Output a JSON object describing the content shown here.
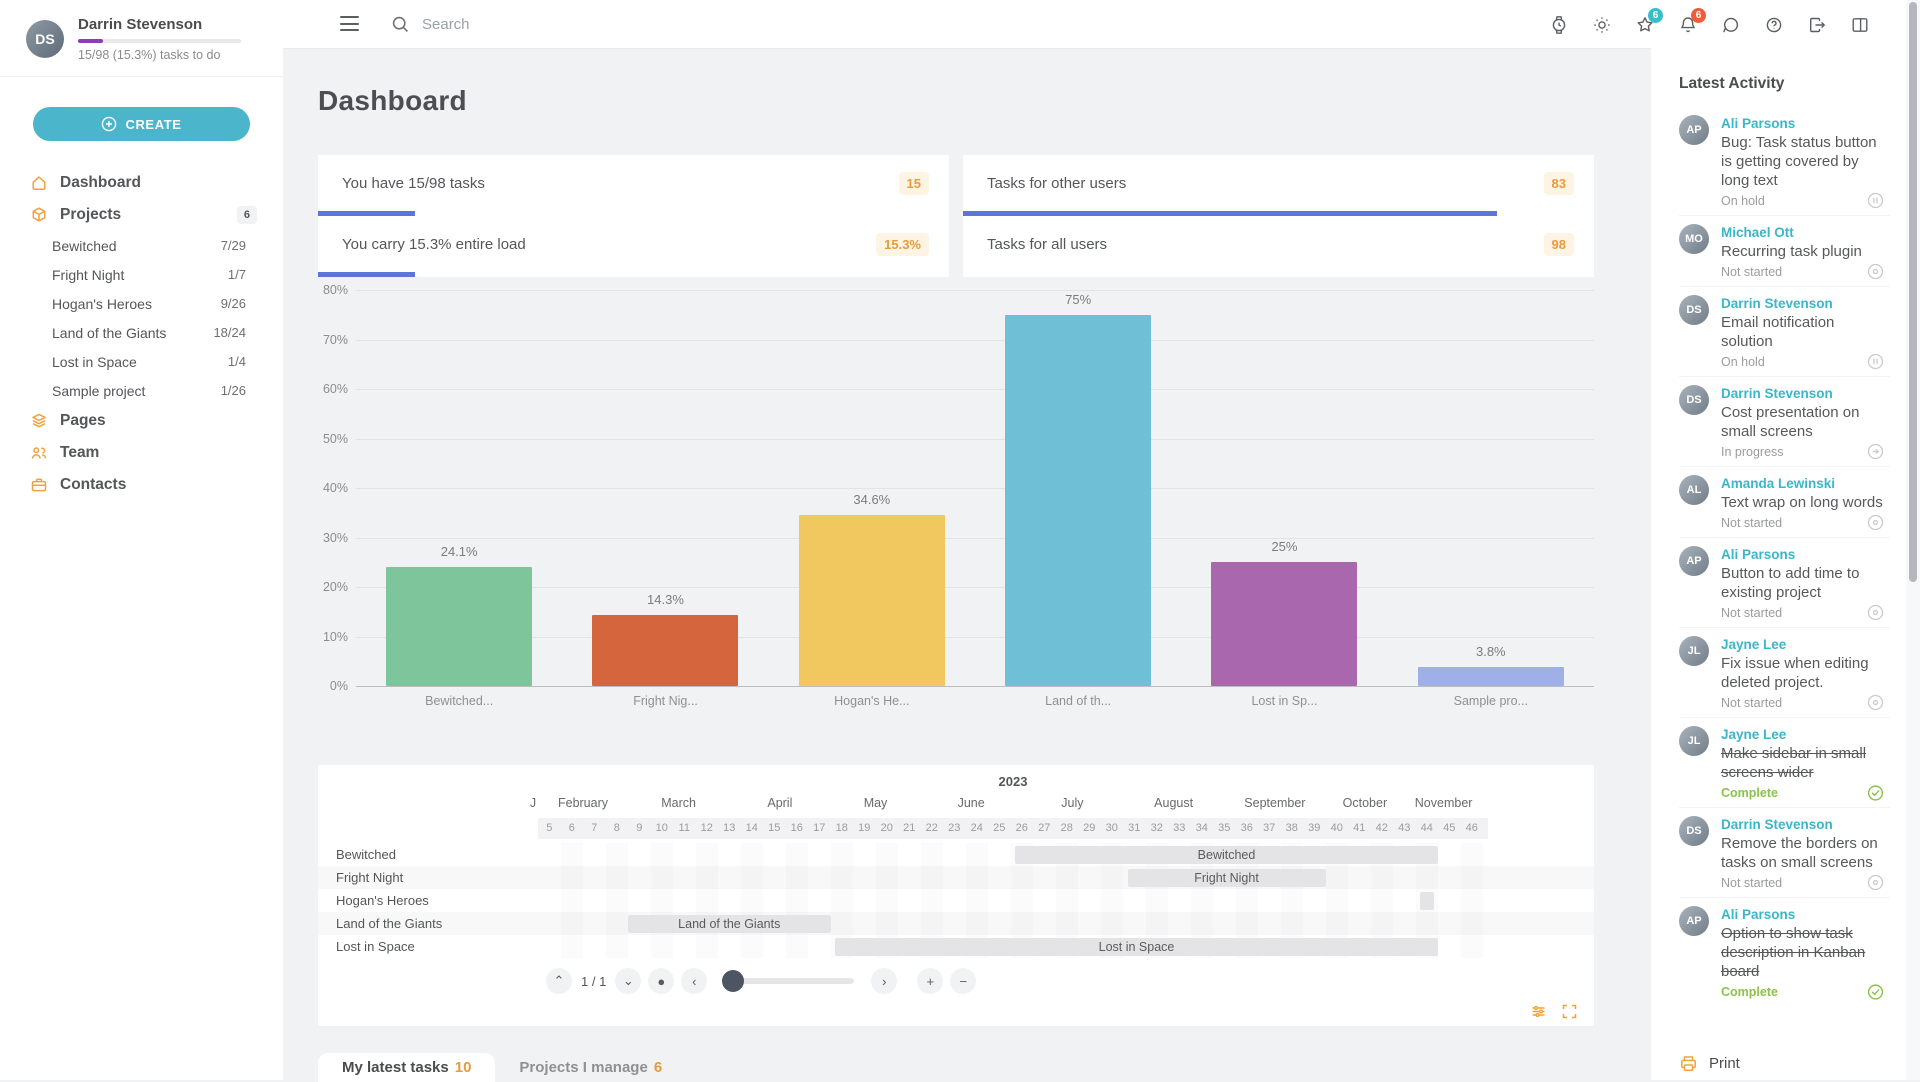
{
  "page_title": "Dashboard",
  "colors": {
    "accent_teal": "#4ab5cb",
    "icon_orange": "#efa23d",
    "badge_orange_bg": "#fdf4e4",
    "badge_orange_text": "#e99a3b",
    "progress_indigo": "#5d74d9",
    "profile_purple": "#8e3cae",
    "name_teal": "#3ab6c9",
    "complete_green": "#8bc34a",
    "badge_teal": "#36bec9",
    "badge_red": "#f15b3c"
  },
  "sidebar": {
    "user": {
      "name": "Darrin Stevenson",
      "tasks_summary": "15/98 (15.3%) tasks to do",
      "progress_pct": 15.3
    },
    "create_label": "CREATE",
    "dashboard_label": "Dashboard",
    "projects_label": "Projects",
    "projects_badge": "6",
    "projects": [
      {
        "name": "Bewitched",
        "count": "7/29"
      },
      {
        "name": "Fright Night",
        "count": "1/7"
      },
      {
        "name": "Hogan's Heroes",
        "count": "9/26"
      },
      {
        "name": "Land of the Giants",
        "count": "18/24"
      },
      {
        "name": "Lost in Space",
        "count": "1/4"
      },
      {
        "name": "Sample project",
        "count": "1/26"
      }
    ],
    "pages_label": "Pages",
    "team_label": "Team",
    "contacts_label": "Contacts"
  },
  "topbar": {
    "search_placeholder": "Search",
    "star_badge": "6",
    "bell_badge": "6"
  },
  "stat_cards": [
    {
      "title": "You have 15/98 tasks",
      "badge": "15",
      "progress_pct": 15.3
    },
    {
      "title": "Tasks for other users",
      "badge": "83",
      "progress_pct": 84.7
    },
    {
      "title": "You carry 15.3% entire load",
      "badge": "15.3%",
      "progress_pct": 15.3
    },
    {
      "title": "Tasks for all users",
      "badge": "98",
      "progress_pct": null
    }
  ],
  "chart_data": {
    "type": "bar",
    "title": "",
    "categories": [
      "Bewitched...",
      "Fright Nig...",
      "Hogan's He...",
      "Land of th...",
      "Lost in Sp...",
      "Sample pro..."
    ],
    "values": [
      24.1,
      14.3,
      34.6,
      75,
      25,
      3.8
    ],
    "value_labels": [
      "24.1%",
      "14.3%",
      "34.6%",
      "75%",
      "25%",
      "3.8%"
    ],
    "colors": [
      "#7fc59c",
      "#d4653c",
      "#f1c75f",
      "#6fbfd6",
      "#a968ae",
      "#9fafe8"
    ],
    "xlabel": "",
    "ylabel": "",
    "ylim": [
      0,
      80
    ],
    "ytick_step_pct": 10,
    "yticks": [
      "0%",
      "10%",
      "20%",
      "30%",
      "40%",
      "50%",
      "60%",
      "70%",
      "80%"
    ],
    "grid": true,
    "legend": false
  },
  "gantt": {
    "year": "2023",
    "week_from": 5,
    "week_to": 46,
    "months": [
      {
        "label": "J",
        "from": 4.55,
        "to": 5.0
      },
      {
        "label": "February",
        "from": 5,
        "to": 9
      },
      {
        "label": "March",
        "from": 9,
        "to": 13.5
      },
      {
        "label": "April",
        "from": 13.5,
        "to": 18
      },
      {
        "label": "May",
        "from": 18,
        "to": 22
      },
      {
        "label": "June",
        "from": 22,
        "to": 26.5
      },
      {
        "label": "July",
        "from": 26.5,
        "to": 31
      },
      {
        "label": "August",
        "from": 31,
        "to": 35.5
      },
      {
        "label": "September",
        "from": 35.5,
        "to": 40
      },
      {
        "label": "October",
        "from": 40,
        "to": 43.5
      },
      {
        "label": "November",
        "from": 43.5,
        "to": 47
      }
    ],
    "rows": [
      {
        "name": "Bewitched",
        "bar": {
          "label": "Bewitched",
          "start": 26.2,
          "end": 45.0
        }
      },
      {
        "name": "Fright Night",
        "bar": {
          "label": "Fright Night",
          "start": 31.2,
          "end": 40.0
        }
      },
      {
        "name": "Hogan's Heroes",
        "bar": {
          "label": "",
          "start": 44.2,
          "end": 44.8
        }
      },
      {
        "name": "Land of the Giants",
        "bar": {
          "label": "Land of the Giants",
          "start": 9.0,
          "end": 18.0
        }
      },
      {
        "name": "Lost in Space",
        "bar": {
          "label": "Lost in Space",
          "start": 18.2,
          "end": 45.0
        }
      }
    ],
    "pager": "1 / 1"
  },
  "tabs": [
    {
      "label": "My latest tasks",
      "count": "10",
      "active": true
    },
    {
      "label": "Projects I manage",
      "count": "6",
      "active": false
    }
  ],
  "activity": {
    "title": "Latest Activity",
    "items": [
      {
        "user": "Ali Parsons",
        "text": "Bug: Task status button is getting covered by long text",
        "status": "On hold",
        "status_type": "onhold"
      },
      {
        "user": "Michael Ott",
        "text": "Recurring task plugin",
        "status": "Not started",
        "status_type": "notstarted"
      },
      {
        "user": "Darrin Stevenson",
        "text": "Email notification solution",
        "status": "On hold",
        "status_type": "onhold"
      },
      {
        "user": "Darrin Stevenson",
        "text": "Cost presentation on small screens",
        "status": "In progress",
        "status_type": "inprogress"
      },
      {
        "user": "Amanda Lewinski",
        "text": "Text wrap on long words",
        "status": "Not started",
        "status_type": "notstarted"
      },
      {
        "user": "Ali Parsons",
        "text": "Button to add time to existing project",
        "status": "Not started",
        "status_type": "notstarted"
      },
      {
        "user": "Jayne Lee",
        "text": "Fix issue when editing deleted project.",
        "status": "Not started",
        "status_type": "notstarted"
      },
      {
        "user": "Jayne Lee",
        "text": "Make sidebar in small screens wider",
        "status": "Complete",
        "status_type": "complete"
      },
      {
        "user": "Darrin Stevenson",
        "text": "Remove the borders on tasks on small screens",
        "status": "Not started",
        "status_type": "notstarted"
      },
      {
        "user": "Ali Parsons",
        "text": "Option to show task description in Kanban board",
        "status": "Complete",
        "status_type": "complete"
      }
    ],
    "print_label": "Print"
  }
}
